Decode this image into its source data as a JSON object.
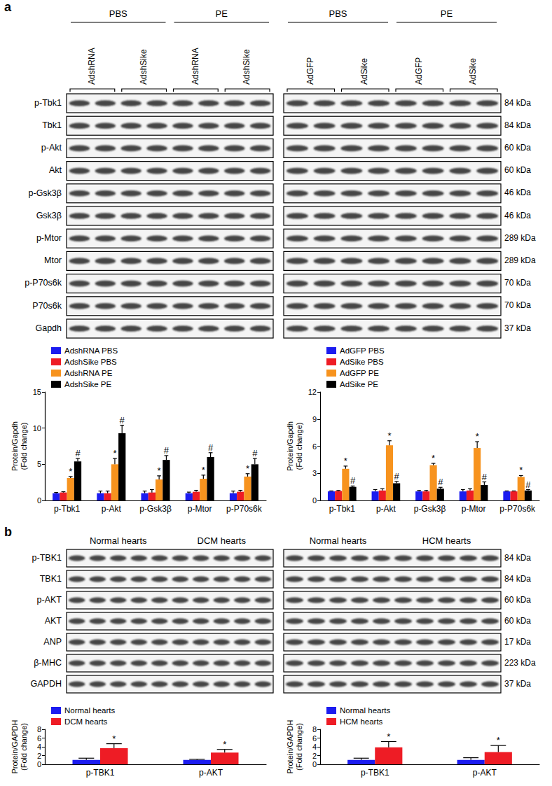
{
  "blot_panels": [
    {
      "label": "a",
      "rows": [
        {
          "name": "p-Tbk1",
          "mw": "84 kDa"
        },
        {
          "name": "Tbk1",
          "mw": "84 kDa"
        },
        {
          "name": "p-Akt",
          "mw": "60 kDa"
        },
        {
          "name": "Akt",
          "mw": "60 kDa"
        },
        {
          "name": "p-Gsk3β",
          "mw": "46 kDa"
        },
        {
          "name": "Gsk3β",
          "mw": "46 kDa"
        },
        {
          "name": "p-Mtor",
          "mw": "289 kDa"
        },
        {
          "name": "Mtor",
          "mw": "289 kDa"
        },
        {
          "name": "p-P70s6k",
          "mw": "70 kDa"
        },
        {
          "name": "P70s6k",
          "mw": "70 kDa"
        },
        {
          "name": "Gapdh",
          "mw": "37 kDa"
        }
      ],
      "blots": [
        {
          "groups": [
            {
              "label": "PBS",
              "lanes": [
                {
                  "label": "AdshRNA",
                  "n": 2
                },
                {
                  "label": "AdshSike",
                  "n": 2
                }
              ]
            },
            {
              "label": "PE",
              "lanes": [
                {
                  "label": "AdshRNA",
                  "n": 2
                },
                {
                  "label": "AdshSike",
                  "n": 2
                }
              ]
            }
          ]
        },
        {
          "groups": [
            {
              "label": "PBS",
              "lanes": [
                {
                  "label": "AdGFP",
                  "n": 2
                },
                {
                  "label": "AdSike",
                  "n": 2
                }
              ]
            },
            {
              "label": "PE",
              "lanes": [
                {
                  "label": "AdGFP",
                  "n": 2
                },
                {
                  "label": "AdSike",
                  "n": 2
                }
              ]
            }
          ]
        }
      ]
    },
    {
      "label": "b",
      "rows": [
        {
          "name": "p-TBK1",
          "mw": "84 kDa"
        },
        {
          "name": "TBK1",
          "mw": "84 kDa"
        },
        {
          "name": "p-AKT",
          "mw": "60 kDa"
        },
        {
          "name": "AKT",
          "mw": "60 kDa"
        },
        {
          "name": "ANP",
          "mw": "17 kDa"
        },
        {
          "name": "β-MHC",
          "mw": "223 kDa"
        },
        {
          "name": "GAPDH",
          "mw": "37 kDa"
        }
      ],
      "blots": [
        {
          "groups": [
            {
              "label": "Normal hearts",
              "n": 5
            },
            {
              "label": "DCM hearts",
              "n": 5
            }
          ]
        },
        {
          "groups": [
            {
              "label": "Normal hearts",
              "n": 5
            },
            {
              "label": "HCM hearts",
              "n": 5
            }
          ]
        }
      ]
    }
  ],
  "chart_data": [
    {
      "type": "bar",
      "ylabel": "Protein/Gapdh\n(Fold change)",
      "categories": [
        "p-Tbk1",
        "p-Akt",
        "p-Gsk3β",
        "p-Mtor",
        "p-P70s6k"
      ],
      "ylim": [
        0,
        15
      ],
      "yticks": [
        0,
        5,
        10,
        15
      ],
      "grid": false,
      "legend": "upper left",
      "series": [
        {
          "name": "AdshRNA PBS",
          "color": "#1c1cf0",
          "values": [
            1.0,
            1.0,
            1.0,
            1.0,
            1.0
          ],
          "errors": [
            0.1,
            0.3,
            0.3,
            0.15,
            0.3
          ]
        },
        {
          "name": "AdshSike PBS",
          "color": "#ee1c25",
          "values": [
            1.1,
            1.0,
            1.1,
            1.2,
            1.2
          ],
          "errors": [
            0.1,
            0.3,
            0.4,
            0.2,
            0.2
          ]
        },
        {
          "name": "AdshRNA PE",
          "color": "#f7931e",
          "values": [
            3.1,
            5.0,
            2.9,
            3.0,
            3.3
          ],
          "errors": [
            0.2,
            0.8,
            0.5,
            0.5,
            0.4
          ],
          "significance": [
            "*",
            "*",
            "*",
            "*",
            "*"
          ]
        },
        {
          "name": "AdshSike PE",
          "color": "#000000",
          "values": [
            5.4,
            9.3,
            5.6,
            6.0,
            5.0
          ],
          "errors": [
            0.4,
            1.1,
            0.6,
            0.6,
            0.8
          ],
          "significance": [
            "#",
            "#",
            "#",
            "#",
            "#"
          ]
        }
      ]
    },
    {
      "type": "bar",
      "ylabel": "Protein/Gapdh\n(Fold change)",
      "categories": [
        "p-Tbk1",
        "p-Akt",
        "p-Gsk3β",
        "p-Mtor",
        "p-P70s6k"
      ],
      "ylim": [
        0,
        12
      ],
      "yticks": [
        0,
        3,
        6,
        9,
        12
      ],
      "grid": false,
      "legend": "upper left",
      "series": [
        {
          "name": "AdGFP PBS",
          "color": "#1c1cf0",
          "values": [
            1.0,
            1.0,
            1.0,
            1.0,
            1.0
          ],
          "errors": [
            0.05,
            0.2,
            0.1,
            0.2,
            0.05
          ]
        },
        {
          "name": "AdSike PBS",
          "color": "#ee1c25",
          "values": [
            1.05,
            1.1,
            1.0,
            1.1,
            1.0
          ],
          "errors": [
            0.05,
            0.2,
            0.1,
            0.2,
            0.05
          ]
        },
        {
          "name": "AdGFP PE",
          "color": "#f7931e",
          "values": [
            3.5,
            6.1,
            3.9,
            5.8,
            2.6
          ],
          "errors": [
            0.3,
            0.5,
            0.2,
            0.7,
            0.15
          ],
          "significance": [
            "*",
            "*",
            "*",
            "*",
            "*"
          ]
        },
        {
          "name": "AdSike PE",
          "color": "#000000",
          "values": [
            1.5,
            1.9,
            1.3,
            1.7,
            1.1
          ],
          "errors": [
            0.1,
            0.2,
            0.15,
            0.35,
            0.1
          ],
          "significance": [
            "#",
            "#",
            "#",
            "#",
            "#"
          ]
        }
      ]
    },
    {
      "type": "bar",
      "ylabel": "Protein/GAPDH\n(Fold change)",
      "categories": [
        "p-TBK1",
        "p-AKT"
      ],
      "ylim": [
        0,
        8
      ],
      "yticks": [
        0,
        2,
        4,
        6,
        8
      ],
      "grid": false,
      "legend": "upper left",
      "series": [
        {
          "name": "Normal hearts",
          "color": "#1c1cf0",
          "values": [
            1.0,
            1.0
          ],
          "errors": [
            0.4,
            0.15
          ]
        },
        {
          "name": "DCM hearts",
          "color": "#ee1c25",
          "values": [
            3.7,
            2.7
          ],
          "errors": [
            1.0,
            0.7
          ],
          "significance": [
            "*",
            "*"
          ]
        }
      ]
    },
    {
      "type": "bar",
      "ylabel": "Protein/GAPDH\n(Fold change)",
      "categories": [
        "p-TBK1",
        "p-AKT"
      ],
      "ylim": [
        0,
        8
      ],
      "yticks": [
        0,
        2,
        4,
        6,
        8
      ],
      "grid": false,
      "legend": "upper left",
      "series": [
        {
          "name": "Normal hearts",
          "color": "#1c1cf0",
          "values": [
            1.0,
            1.0
          ],
          "errors": [
            0.4,
            0.5
          ]
        },
        {
          "name": "HCM hearts",
          "color": "#ee1c25",
          "values": [
            3.9,
            2.8
          ],
          "errors": [
            1.3,
            1.5
          ],
          "significance": [
            "*",
            "*"
          ]
        }
      ]
    }
  ]
}
